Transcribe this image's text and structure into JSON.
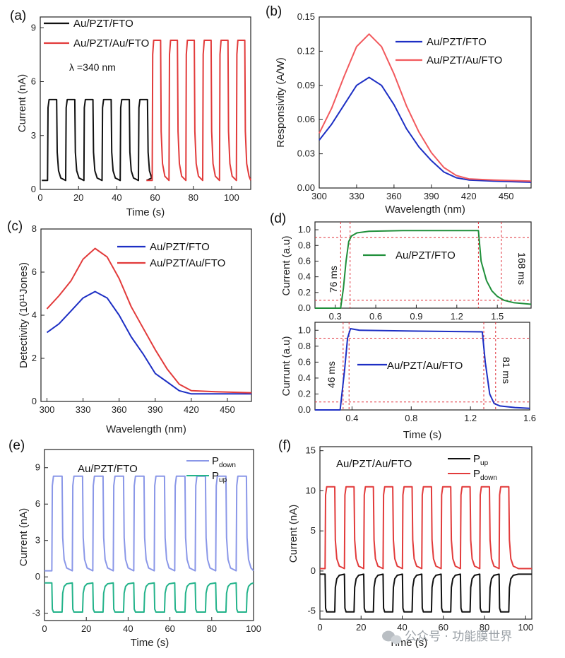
{
  "colors": {
    "black": "#111111",
    "red": "#e23b3b",
    "blue": "#1d2fc4",
    "green": "#1f8f3a",
    "lightblue": "#8a97e8",
    "teal": "#23b38a",
    "paleRed": "#f2595d"
  },
  "watermark": "公众号 · 功能膜世界",
  "chart_data": [
    {
      "id": "a",
      "panel_label": "(a)",
      "type": "line",
      "xlabel": "Time (s)",
      "ylabel": "Current (nA)",
      "xlim": [
        0,
        110
      ],
      "ylim": [
        0,
        9.6
      ],
      "xticks": [
        0,
        20,
        40,
        60,
        80,
        100
      ],
      "yticks": [
        0,
        3,
        6,
        9
      ],
      "annotation": "λ =340 nm",
      "series": [
        {
          "name": "Au/PZT/FTO",
          "color": "#111111",
          "period": 9.5,
          "on": 5,
          "off": 0.5,
          "start": 3.8,
          "end": 55.5,
          "pulses": 6
        },
        {
          "name": "Au/PZT/Au/FTO",
          "color": "#e23b3b",
          "period": 8.8,
          "on": 8.3,
          "off": 0.5,
          "start": 58.5,
          "end": 110,
          "pulses": 6
        }
      ]
    },
    {
      "id": "b",
      "panel_label": "(b)",
      "type": "line",
      "xlabel": "Wavelength (nm)",
      "ylabel": "Responsivity (A/W)",
      "xlim": [
        300,
        470
      ],
      "ylim": [
        0,
        0.15
      ],
      "xticks": [
        300,
        330,
        360,
        390,
        420,
        450
      ],
      "yticks": [
        0.0,
        0.03,
        0.06,
        0.09,
        0.12,
        0.15
      ],
      "ytick_labels": [
        "0.00",
        "0.03",
        "0.06",
        "0.09",
        "0.12",
        "0.15"
      ],
      "series": [
        {
          "name": "Au/PZT/FTO",
          "color": "#1d2fc4",
          "x": [
            300,
            310,
            320,
            330,
            340,
            350,
            360,
            370,
            380,
            390,
            400,
            410,
            420,
            440,
            470
          ],
          "y": [
            0.042,
            0.056,
            0.073,
            0.09,
            0.097,
            0.09,
            0.073,
            0.052,
            0.036,
            0.024,
            0.014,
            0.009,
            0.007,
            0.006,
            0.005
          ]
        },
        {
          "name": "Au/PZT/Au/FTO",
          "color": "#f2595d",
          "x": [
            300,
            310,
            320,
            330,
            340,
            350,
            360,
            370,
            380,
            390,
            400,
            410,
            420,
            440,
            470
          ],
          "y": [
            0.048,
            0.07,
            0.098,
            0.124,
            0.135,
            0.124,
            0.1,
            0.072,
            0.049,
            0.031,
            0.018,
            0.011,
            0.008,
            0.007,
            0.006
          ]
        }
      ]
    },
    {
      "id": "c",
      "panel_label": "(c)",
      "type": "line",
      "xlabel": "Wavelength (nm)",
      "ylabel": "Detectivity (10¹¹Jones)",
      "xlim": [
        295,
        470
      ],
      "ylim": [
        0,
        8
      ],
      "xticks": [
        300,
        330,
        360,
        390,
        420,
        450
      ],
      "yticks": [
        0,
        2,
        4,
        6,
        8
      ],
      "series": [
        {
          "name": "Au/PZT/FTO",
          "color": "#1d2fc4",
          "x": [
            300,
            310,
            320,
            330,
            340,
            350,
            360,
            370,
            380,
            390,
            400,
            410,
            420,
            440,
            470
          ],
          "y": [
            3.2,
            3.6,
            4.2,
            4.8,
            5.1,
            4.8,
            4.0,
            3.0,
            2.2,
            1.3,
            0.9,
            0.5,
            0.35,
            0.35,
            0.35
          ]
        },
        {
          "name": "Au/PZT/Au/FTO",
          "color": "#e23b3b",
          "x": [
            300,
            310,
            320,
            330,
            340,
            350,
            360,
            370,
            380,
            390,
            400,
            410,
            420,
            440,
            470
          ],
          "y": [
            4.3,
            4.9,
            5.6,
            6.6,
            7.1,
            6.7,
            5.7,
            4.4,
            3.4,
            2.4,
            1.5,
            0.8,
            0.5,
            0.45,
            0.4
          ]
        }
      ]
    },
    {
      "id": "d_top",
      "panel_label": "(d)",
      "type": "line",
      "xlabel": "",
      "ylabel": "Current (a.u)",
      "xlim": [
        0.15,
        1.75
      ],
      "ylim": [
        0,
        1.1
      ],
      "xticks": [
        0.3,
        0.6,
        0.9,
        1.2,
        1.5
      ],
      "yticks": [
        0.0,
        0.2,
        0.4,
        0.6,
        0.8,
        1.0
      ],
      "xtick_labels": [
        "0.3",
        "0.6",
        "0.9",
        "1.2",
        "1.5"
      ],
      "ytick_labels": [
        "0.0",
        "0.2",
        "0.4",
        "0.6",
        "0.8",
        "1.0"
      ],
      "annotations": {
        "rise": "76 ms",
        "fall": "168 ms"
      },
      "series": [
        {
          "name": "Au/PZT/FTO",
          "color": "#1f8f3a",
          "x": [
            0.15,
            0.34,
            0.36,
            0.38,
            0.4,
            0.42,
            0.46,
            0.55,
            0.8,
            1.36,
            1.38,
            1.42,
            1.46,
            1.5,
            1.55,
            1.62,
            1.75
          ],
          "y": [
            0,
            0,
            0.25,
            0.6,
            0.85,
            0.92,
            0.96,
            0.98,
            0.99,
            0.99,
            0.6,
            0.35,
            0.22,
            0.15,
            0.1,
            0.07,
            0.05
          ]
        }
      ]
    },
    {
      "id": "d_bottom",
      "panel_label": "",
      "type": "line",
      "xlabel": "Time (s)",
      "ylabel": "Currunt (a.u)",
      "xlim": [
        0.15,
        1.6
      ],
      "ylim": [
        0,
        1.1
      ],
      "xticks": [
        0.4,
        0.8,
        1.2,
        1.6
      ],
      "yticks": [
        0.0,
        0.2,
        0.4,
        0.6,
        0.8,
        1.0
      ],
      "xtick_labels": [
        "0.4",
        "0.8",
        "1.2",
        "1.6"
      ],
      "ytick_labels": [
        "0.0",
        "0.2",
        "0.4",
        "0.6",
        "0.8",
        "1.0"
      ],
      "annotations": {
        "rise": "46 ms",
        "fall": "81 ms"
      },
      "series": [
        {
          "name": "Au/PZT/Au/FTO",
          "color": "#1d2fc4",
          "x": [
            0.15,
            0.32,
            0.35,
            0.37,
            0.39,
            0.45,
            0.8,
            1.28,
            1.3,
            1.33,
            1.36,
            1.4,
            1.5,
            1.6
          ],
          "y": [
            0,
            0,
            0.5,
            0.9,
            1.02,
            1.0,
            0.99,
            0.98,
            0.6,
            0.2,
            0.08,
            0.05,
            0.03,
            0.02
          ]
        }
      ]
    },
    {
      "id": "e",
      "panel_label": "(e)",
      "type": "line",
      "xlabel": "Time (s)",
      "ylabel": "Current (nA)",
      "xlim": [
        0,
        100
      ],
      "ylim": [
        -3.6,
        10.5
      ],
      "xticks": [
        0,
        20,
        40,
        60,
        80,
        100
      ],
      "yticks": [
        -3,
        0,
        3,
        6,
        9
      ],
      "annotation": "Au/PZT/FTO",
      "series": [
        {
          "name": "P",
          "sub": "down",
          "color": "#8a97e8",
          "period": 9.8,
          "on": 8.3,
          "off": 0.5,
          "start": 3.5,
          "pulses": 10,
          "kind": "up"
        },
        {
          "name": "P",
          "sub": "up",
          "color": "#23b38a",
          "period": 9.8,
          "on": -2.9,
          "off": -0.5,
          "start": 3.5,
          "pulses": 10,
          "kind": "down"
        }
      ]
    },
    {
      "id": "f",
      "panel_label": "(f)",
      "type": "line",
      "xlabel": "Time (s)",
      "ylabel": "Current (nA)",
      "xlim": [
        0,
        103
      ],
      "ylim": [
        -6,
        15.5
      ],
      "xticks": [
        0,
        20,
        40,
        60,
        80,
        100
      ],
      "yticks": [
        -5,
        0,
        5,
        10,
        15
      ],
      "annotation": "Au/PZT/Au/FTO",
      "series": [
        {
          "name": "P",
          "sub": "up",
          "color": "#111111",
          "period": 9.4,
          "on": -5.1,
          "off": -0.4,
          "start": 2.5,
          "pulses": 10,
          "kind": "down"
        },
        {
          "name": "P",
          "sub": "down",
          "color": "#e23b3b",
          "period": 9.4,
          "on": 10.5,
          "off": 0.3,
          "start": 2.5,
          "pulses": 10,
          "kind": "up"
        }
      ]
    }
  ]
}
